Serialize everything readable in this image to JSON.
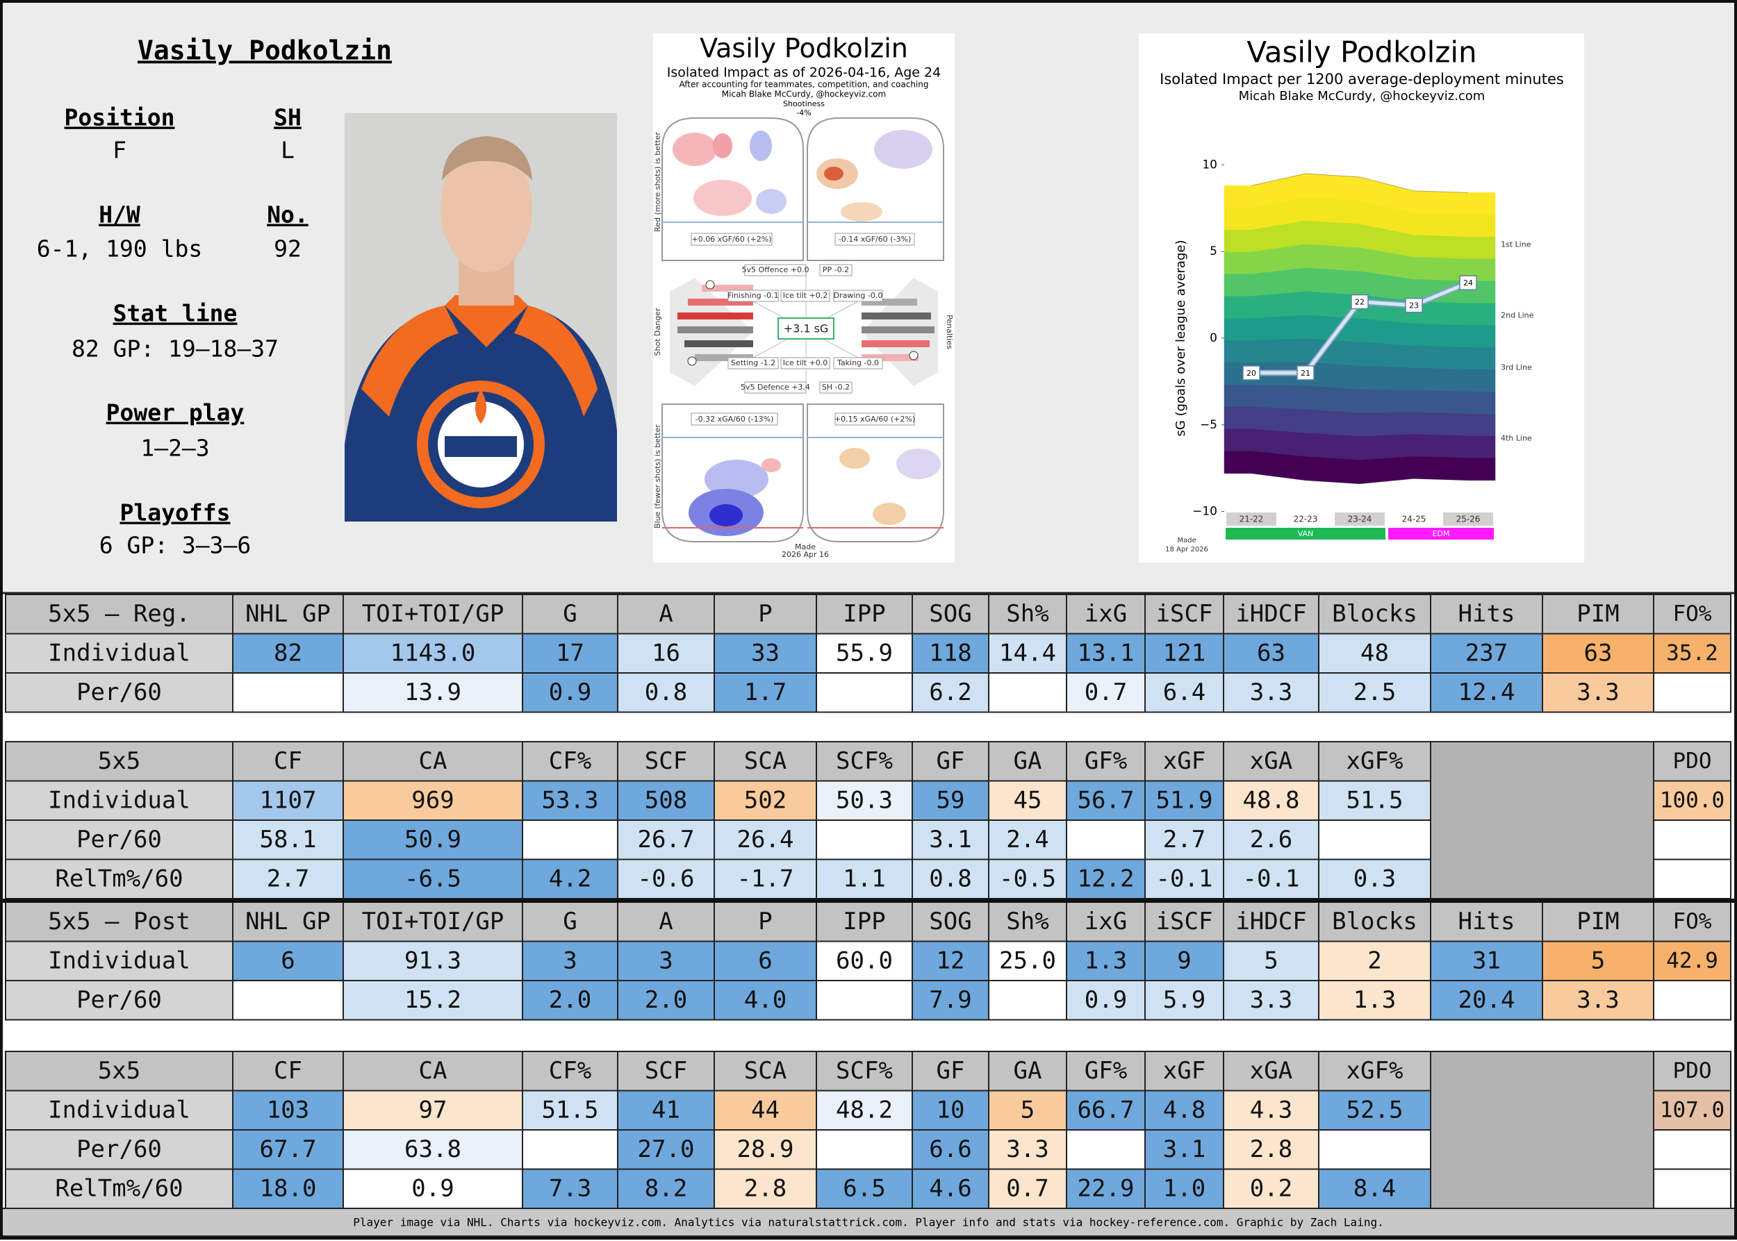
{
  "player": {
    "name": "Vasily Podkolzin",
    "fields": [
      {
        "label": "Position",
        "value": "F"
      },
      {
        "label": "SH",
        "value": "L"
      },
      {
        "label": "H/W",
        "value": "6-1, 190 lbs"
      },
      {
        "label": "No.",
        "value": "92"
      },
      {
        "label": "Stat line",
        "value": "82 GP: 19–18–37"
      },
      {
        "label": "Power play",
        "value": "1–2–3"
      },
      {
        "label": "Playoffs",
        "value": "6 GP: 3–3–6"
      }
    ]
  },
  "impact_chart": {
    "title": "Vasily Podkolzin",
    "subtitle": "Isolated Impact as of 2026-04-16, Age 24",
    "note": "After accounting for teammates, competition, and coaching",
    "author": "Micah Blake McCurdy, @hockeyviz.com",
    "shootiness_label": "Shootiness",
    "shootiness": "-4%",
    "offence_side": "Red (more shots) is better",
    "defence_side": "Blue (fewer shots) is better",
    "shot_danger": "Shot Danger",
    "penalties": "Penalties",
    "xgf_left": "+0.06 xGF/60 (+2%)",
    "xgf_right": "-0.14 xGF/60 (-3%)",
    "xga_left": "-0.32 xGA/60 (-13%)",
    "xga_right": "+0.15 xGA/60 (+2%)",
    "offence": "5v5 Offence +0.0",
    "pp": "PP -0.2",
    "finishing": "Finishing -0.1",
    "tilt_for": "Ice tilt +0.2",
    "drawing": "Drawing -0.0",
    "total": "+3.1 sG",
    "setting": "Setting -1.2",
    "tilt_against": "Ice tilt +0.0",
    "taking": "Taking -0.0",
    "defence": "5v5 Defence +3.4",
    "sh": "SH -0.2",
    "made": "Made",
    "date": "2026 Apr 16"
  },
  "chart_data": {
    "type": "line",
    "title": "Vasily Podkolzin",
    "subtitle": "Isolated Impact per 1200 average-deployment minutes",
    "author": "Micah Blake McCurdy, @hockeyviz.com",
    "y_label": "sG (goals over league average)",
    "categories": [
      "21-22",
      "22-23",
      "23-24",
      "24-25",
      "25-26"
    ],
    "values": [
      -2.0,
      -2.0,
      2.1,
      1.9,
      3.2
    ],
    "point_labels": [
      20,
      21,
      22,
      23,
      24
    ],
    "color": "#d6e6f5",
    "ylim": [
      -10.5,
      10.5
    ],
    "yticks": [
      {
        "value": -10,
        "label": "−10"
      },
      {
        "value": -5,
        "label": "−5"
      },
      0,
      5,
      10
    ],
    "band_top": [
      8.8,
      9.5,
      9.3,
      8.5,
      8.4
    ],
    "band_bottom": [
      -7.8,
      -8.2,
      -8.4,
      -8.1,
      -8.2
    ],
    "band_colors": [
      "#fde725",
      "#f4e61e",
      "#bddf26",
      "#86d549",
      "#52c569",
      "#2ab07f",
      "#1e9b8a",
      "#25858e",
      "#2d708e",
      "#38588c",
      "#433e85",
      "#482173",
      "#440154"
    ],
    "line_labels": [
      {
        "label": "1st Line",
        "value": 5.4
      },
      {
        "label": "2nd Line",
        "value": 1.3
      },
      {
        "label": "3rd Line",
        "value": -1.7
      },
      {
        "label": "4th Line",
        "value": -5.8
      }
    ],
    "team_bars": [
      {
        "label": "VAN",
        "from": "21-22",
        "to": "23-24",
        "color": "#1db954"
      },
      {
        "label": "EDM",
        "from": "24-25",
        "to": "25-26",
        "color": "#ff1aff"
      }
    ],
    "footnote": [
      "Made",
      "18 Apr 2026"
    ]
  },
  "tables": [
    {
      "title": "5x5 – Reg.",
      "columns": [
        "NHL GP",
        "TOI+TOI/GP",
        "G",
        "A",
        "P",
        "IPP",
        "SOG",
        "Sh%",
        "ixG",
        "iSCF",
        "iHDCF",
        "Blocks",
        "Hits",
        "PIM",
        "FO%"
      ],
      "rows": [
        {
          "label": "Individual",
          "cells": [
            "82",
            "1143.0",
            "17",
            "16",
            "33",
            "55.9",
            "118",
            "14.4",
            "13.1",
            "121",
            "63",
            "48",
            "237",
            "63",
            "35.2"
          ],
          "colors": [
            "#6fa8dc",
            "#a4c7ec",
            "#6fa8dc",
            "#cfe2f3",
            "#6fa8dc",
            "#ffffff",
            "#6fa8dc",
            "#cfe2f3",
            "#6fa8dc",
            "#6fa8dc",
            "#6fa8dc",
            "#cfe2f3",
            "#6fa8dc",
            "#f6b26b",
            "#f6b26b"
          ]
        },
        {
          "label": "Per/60",
          "cells": [
            null,
            "13.9",
            "0.9",
            "0.8",
            "1.7",
            null,
            "6.2",
            null,
            "0.7",
            "6.4",
            "3.3",
            "2.5",
            "12.4",
            "3.3",
            null
          ],
          "colors": [
            "#ffffff",
            "#eaf1fa",
            "#6fa8dc",
            "#cfe2f3",
            "#6fa8dc",
            "#ffffff",
            "#cfe2f3",
            "#ffffff",
            "#eaf1fa",
            "#cfe2f3",
            "#cfe2f3",
            "#cfe2f3",
            "#6fa8dc",
            "#f9cb9c",
            "#ffffff"
          ]
        }
      ]
    },
    {
      "title": "5x5",
      "columns": [
        "CF",
        "CA",
        "CF%",
        "SCF",
        "SCA",
        "SCF%",
        "GF",
        "GA",
        "GF%",
        "xGF",
        "xGA",
        "xGF%",
        "PDO"
      ],
      "rows": [
        {
          "label": "Individual",
          "cells": [
            "1107",
            "969",
            "53.3",
            "508",
            "502",
            "50.3",
            "59",
            "45",
            "56.7",
            "51.9",
            "48.8",
            "51.5",
            "100.0"
          ],
          "colors": [
            "#a4c7ec",
            "#f9cb9c",
            "#6fa8dc",
            "#6fa8dc",
            "#f9cb9c",
            "#eaf1fa",
            "#6fa8dc",
            "#fce5cd",
            "#6fa8dc",
            "#6fa8dc",
            "#fce5cd",
            "#cfe2f3",
            "#f9cb9c"
          ]
        },
        {
          "label": "Per/60",
          "cells": [
            "58.1",
            "50.9",
            null,
            "26.7",
            "26.4",
            null,
            "3.1",
            "2.4",
            null,
            "2.7",
            "2.6",
            null,
            null
          ],
          "colors": [
            "#cfe2f3",
            "#6fa8dc",
            "#ffffff",
            "#cfe2f3",
            "#cfe2f3",
            "#ffffff",
            "#cfe2f3",
            "#cfe2f3",
            "#ffffff",
            "#cfe2f3",
            "#cfe2f3",
            "#ffffff",
            "#ffffff"
          ]
        },
        {
          "label": "RelTm%/60",
          "cells": [
            "2.7",
            "-6.5",
            "4.2",
            "-0.6",
            "-1.7",
            "1.1",
            "0.8",
            "-0.5",
            "12.2",
            "-0.1",
            "-0.1",
            "0.3",
            null
          ],
          "colors": [
            "#cfe2f3",
            "#6fa8dc",
            "#6fa8dc",
            "#cfe2f3",
            "#cfe2f3",
            "#cfe2f3",
            "#cfe2f3",
            "#cfe2f3",
            "#6fa8dc",
            "#cfe2f3",
            "#cfe2f3",
            "#cfe2f3",
            "#ffffff"
          ]
        }
      ]
    },
    {
      "title": "5x5 – Post",
      "columns": [
        "NHL GP",
        "TOI+TOI/GP",
        "G",
        "A",
        "P",
        "IPP",
        "SOG",
        "Sh%",
        "ixG",
        "iSCF",
        "iHDCF",
        "Blocks",
        "Hits",
        "PIM",
        "FO%"
      ],
      "rows": [
        {
          "label": "Individual",
          "cells": [
            "6",
            "91.3",
            "3",
            "3",
            "6",
            "60.0",
            "12",
            "25.0",
            "1.3",
            "9",
            "5",
            "2",
            "31",
            "5",
            "42.9"
          ],
          "colors": [
            "#6fa8dc",
            "#cfe2f3",
            "#6fa8dc",
            "#6fa8dc",
            "#6fa8dc",
            "#ffffff",
            "#6fa8dc",
            "#ffffff",
            "#6fa8dc",
            "#6fa8dc",
            "#cfe2f3",
            "#fce5cd",
            "#6fa8dc",
            "#f6b26b",
            "#f6b26b"
          ]
        },
        {
          "label": "Per/60",
          "cells": [
            null,
            "15.2",
            "2.0",
            "2.0",
            "4.0",
            null,
            "7.9",
            null,
            "0.9",
            "5.9",
            "3.3",
            "1.3",
            "20.4",
            "3.3",
            null
          ],
          "colors": [
            "#ffffff",
            "#cfe2f3",
            "#6fa8dc",
            "#6fa8dc",
            "#6fa8dc",
            "#ffffff",
            "#6fa8dc",
            "#ffffff",
            "#cfe2f3",
            "#cfe2f3",
            "#cfe2f3",
            "#fce5cd",
            "#6fa8dc",
            "#f9cb9c",
            "#ffffff"
          ]
        }
      ]
    },
    {
      "title": "5x5",
      "columns": [
        "CF",
        "CA",
        "CF%",
        "SCF",
        "SCA",
        "SCF%",
        "GF",
        "GA",
        "GF%",
        "xGF",
        "xGA",
        "xGF%",
        "PDO"
      ],
      "rows": [
        {
          "label": "Individual",
          "cells": [
            "103",
            "97",
            "51.5",
            "41",
            "44",
            "48.2",
            "10",
            "5",
            "66.7",
            "4.8",
            "4.3",
            "52.5",
            "107.0"
          ],
          "colors": [
            "#6fa8dc",
            "#fce5cd",
            "#cfe2f3",
            "#6fa8dc",
            "#f9cb9c",
            "#eaf1fa",
            "#6fa8dc",
            "#f9cb9c",
            "#6fa8dc",
            "#6fa8dc",
            "#fce5cd",
            "#6fa8dc",
            "#e6c0a6"
          ]
        },
        {
          "label": "Per/60",
          "cells": [
            "67.7",
            "63.8",
            null,
            "27.0",
            "28.9",
            null,
            "6.6",
            "3.3",
            null,
            "3.1",
            "2.8",
            null,
            null
          ],
          "colors": [
            "#6fa8dc",
            "#eaf1fa",
            "#ffffff",
            "#6fa8dc",
            "#fce5cd",
            "#ffffff",
            "#6fa8dc",
            "#fce5cd",
            "#ffffff",
            "#6fa8dc",
            "#fce5cd",
            "#ffffff",
            "#ffffff"
          ]
        },
        {
          "label": "RelTm%/60",
          "cells": [
            "18.0",
            "0.9",
            "7.3",
            "8.2",
            "2.8",
            "6.5",
            "4.6",
            "0.7",
            "22.9",
            "1.0",
            "0.2",
            "8.4",
            null
          ],
          "colors": [
            "#6fa8dc",
            "#ffffff",
            "#6fa8dc",
            "#6fa8dc",
            "#fce5cd",
            "#6fa8dc",
            "#6fa8dc",
            "#fce5cd",
            "#6fa8dc",
            "#6fa8dc",
            "#fce5cd",
            "#6fa8dc",
            "#ffffff"
          ]
        }
      ]
    }
  ],
  "footer": "Player image via NHL. Charts via hockeyviz.com. Analytics via naturalstattrick.com. Player info and stats via hockey-reference.com. Graphic by Zach Laing."
}
